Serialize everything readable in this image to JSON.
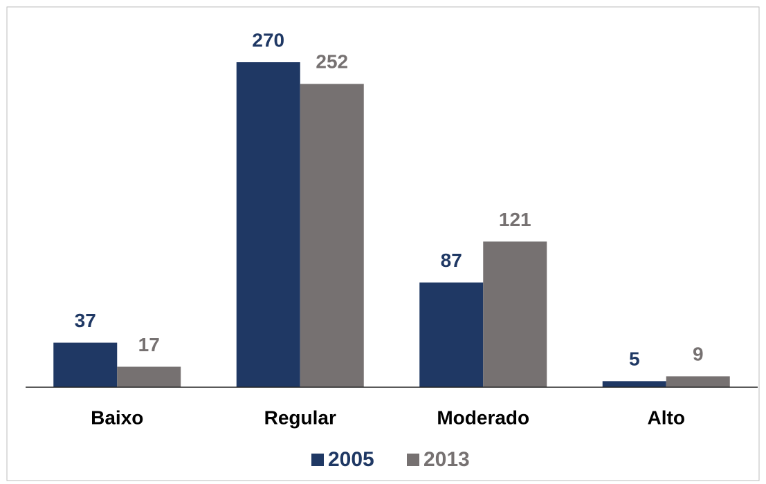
{
  "chart_data": {
    "type": "bar",
    "categories": [
      "Baixo",
      "Regular",
      "Moderado",
      "Alto"
    ],
    "series": [
      {
        "name": "2005",
        "color": "#1f3864",
        "values": [
          37,
          270,
          87,
          5
        ]
      },
      {
        "name": "2013",
        "color": "#767171",
        "values": [
          17,
          252,
          121,
          9
        ]
      }
    ],
    "legend": "bottom"
  }
}
